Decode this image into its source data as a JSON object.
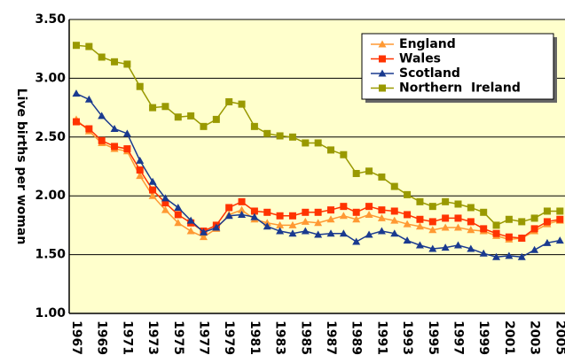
{
  "chart_data": {
    "type": "line",
    "y_label": "Live births per woman",
    "categories": [
      "1967",
      null,
      "1969",
      null,
      "1971",
      null,
      "1973",
      null,
      "1975",
      null,
      "1977",
      null,
      "1979",
      null,
      "1981",
      null,
      "1983",
      null,
      "1985",
      null,
      "1987",
      null,
      "1989",
      null,
      "1991",
      null,
      "1993",
      null,
      "1995",
      null,
      "1997",
      null,
      "1999",
      null,
      "2001",
      null,
      "2003",
      null,
      "2005"
    ],
    "ylim": [
      1.0,
      3.5
    ],
    "yticks": [
      {
        "value": 1.0,
        "label": "1.00"
      },
      {
        "value": 1.5,
        "label": "1.50"
      },
      {
        "value": 2.0,
        "label": "2.00"
      },
      {
        "value": 2.5,
        "label": "2.50"
      },
      {
        "value": 3.0,
        "label": "3.00"
      },
      {
        "value": 3.5,
        "label": "3.50"
      }
    ],
    "grid": true,
    "legend": "top-right",
    "series": [
      {
        "name": "England",
        "color": "#ff9933",
        "marker": "triangle",
        "values": [
          2.65,
          2.55,
          2.45,
          2.4,
          2.38,
          2.17,
          2.0,
          1.88,
          1.77,
          1.7,
          1.65,
          1.72,
          1.84,
          1.88,
          1.8,
          1.77,
          1.75,
          1.75,
          1.78,
          1.77,
          1.8,
          1.83,
          1.8,
          1.84,
          1.81,
          1.79,
          1.76,
          1.74,
          1.71,
          1.73,
          1.73,
          1.71,
          1.7,
          1.66,
          1.63,
          1.64,
          1.7,
          1.76,
          1.79
        ]
      },
      {
        "name": "Wales",
        "color": "#ff3300",
        "marker": "square",
        "values": [
          2.63,
          2.57,
          2.47,
          2.42,
          2.4,
          2.22,
          2.05,
          1.94,
          1.84,
          1.77,
          1.7,
          1.75,
          1.9,
          1.95,
          1.87,
          1.86,
          1.83,
          1.83,
          1.86,
          1.86,
          1.88,
          1.91,
          1.86,
          1.91,
          1.88,
          1.87,
          1.84,
          1.8,
          1.78,
          1.81,
          1.81,
          1.78,
          1.72,
          1.68,
          1.65,
          1.64,
          1.72,
          1.78,
          1.8
        ]
      },
      {
        "name": "Scotland",
        "color": "#1a3a8f",
        "marker": "triangle",
        "values": [
          2.87,
          2.82,
          2.68,
          2.57,
          2.53,
          2.3,
          2.12,
          1.98,
          1.9,
          1.79,
          1.69,
          1.73,
          1.83,
          1.84,
          1.82,
          1.74,
          1.7,
          1.68,
          1.7,
          1.67,
          1.68,
          1.68,
          1.61,
          1.67,
          1.7,
          1.68,
          1.62,
          1.58,
          1.55,
          1.56,
          1.58,
          1.55,
          1.51,
          1.48,
          1.49,
          1.48,
          1.54,
          1.6,
          1.62
        ]
      },
      {
        "name": "Northern  Ireland",
        "color": "#999900",
        "marker": "square",
        "values": [
          3.28,
          3.27,
          3.18,
          3.14,
          3.12,
          2.93,
          2.75,
          2.76,
          2.67,
          2.68,
          2.59,
          2.65,
          2.8,
          2.78,
          2.59,
          2.53,
          2.51,
          2.5,
          2.45,
          2.45,
          2.39,
          2.35,
          2.19,
          2.21,
          2.16,
          2.08,
          2.01,
          1.95,
          1.91,
          1.95,
          1.93,
          1.9,
          1.86,
          1.75,
          1.8,
          1.78,
          1.81,
          1.87,
          1.87
        ]
      }
    ]
  }
}
